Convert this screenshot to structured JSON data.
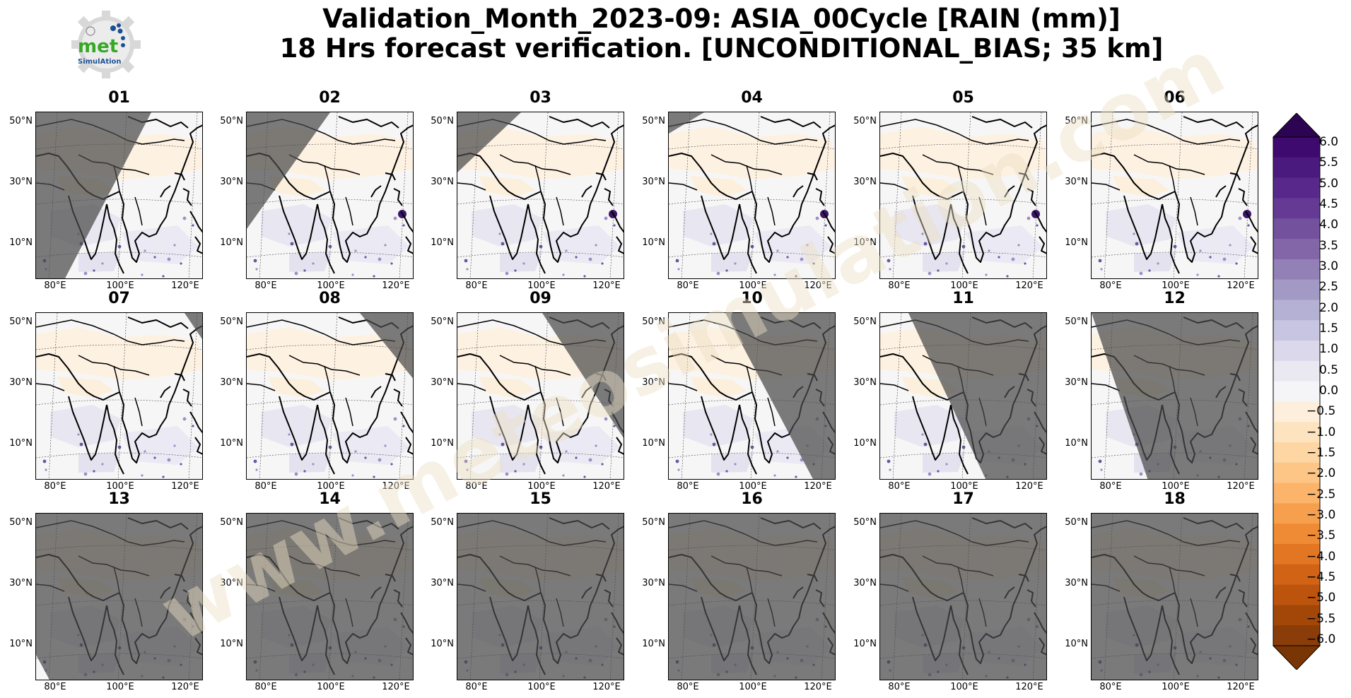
{
  "title_line1": "Validation_Month_2023-09: ASIA_00Cycle [RAIN (mm)]",
  "title_line2": "18 Hrs forecast verification. [UNCONDITIONAL_BIAS; 35 km]",
  "logo": {
    "text": "met",
    "subtext": "SimulAtion",
    "icon": "gear-logo-icon"
  },
  "watermark": "www.meteosimulation.com",
  "lat_labels": [
    "50°N",
    "30°N",
    "10°N"
  ],
  "lon_labels": [
    "80°E",
    "100°E",
    "120°E"
  ],
  "panels": [
    {
      "label": "01",
      "night": "west-large"
    },
    {
      "label": "02",
      "night": "west-medium"
    },
    {
      "label": "03",
      "night": "west-small"
    },
    {
      "label": "04",
      "night": "corner-nw"
    },
    {
      "label": "05",
      "night": "none"
    },
    {
      "label": "06",
      "night": "none"
    },
    {
      "label": "07",
      "night": "east-small"
    },
    {
      "label": "08",
      "night": "east-medium"
    },
    {
      "label": "09",
      "night": "east-large"
    },
    {
      "label": "10",
      "night": "east-larger"
    },
    {
      "label": "11",
      "night": "east-most"
    },
    {
      "label": "12",
      "night": "east-almost-all"
    },
    {
      "label": "13",
      "night": "all-but-sliver"
    },
    {
      "label": "14",
      "night": "all"
    },
    {
      "label": "15",
      "night": "all"
    },
    {
      "label": "16",
      "night": "all"
    },
    {
      "label": "17",
      "night": "all"
    },
    {
      "label": "18",
      "night": "all"
    }
  ],
  "colorbar": {
    "labels": [
      "6.0",
      "5.5",
      "5.0",
      "4.5",
      "4.0",
      "3.5",
      "3.0",
      "2.5",
      "2.0",
      "1.5",
      "1.0",
      "0.5",
      "0.0",
      "−0.5",
      "−1.0",
      "−1.5",
      "−2.0",
      "−2.5",
      "−3.0",
      "−3.5",
      "−4.0",
      "−4.5",
      "−5.0",
      "−5.5",
      "−6.0"
    ],
    "colors": [
      "#3f0a70",
      "#4b1a7f",
      "#58288a",
      "#653a94",
      "#73519d",
      "#8266a8",
      "#9280b6",
      "#a399c5",
      "#b4b1d4",
      "#c7c5e1",
      "#dad8ea",
      "#eae9f2",
      "#f5f4f6",
      "#fdefdc",
      "#fde3c0",
      "#fdd6a3",
      "#fdc687",
      "#fbb46a",
      "#f6a04e",
      "#ee8b34",
      "#e27622",
      "#d06315",
      "#bd540d",
      "#a34709",
      "#8a3d08"
    ],
    "over_color": "#2d0452",
    "under_color": "#7a3505"
  }
}
